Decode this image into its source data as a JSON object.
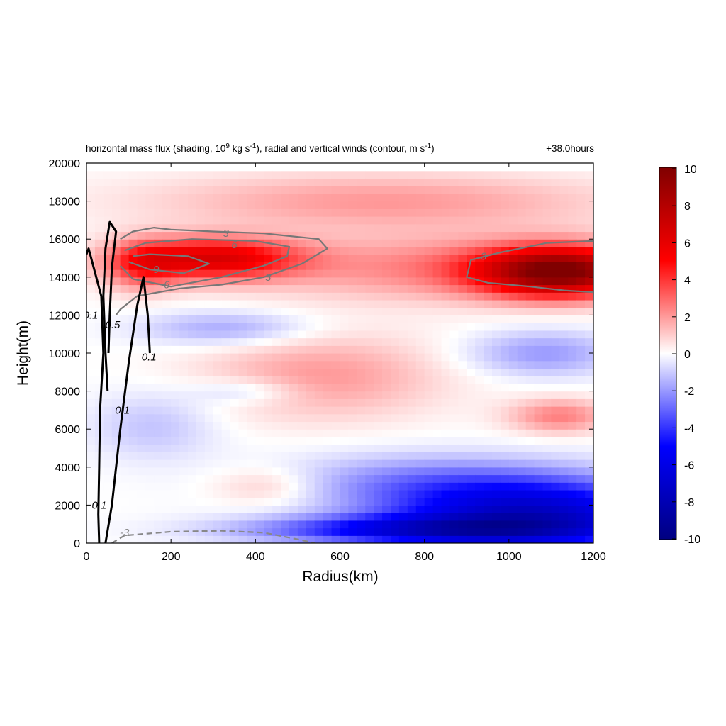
{
  "chart_data": {
    "type": "heatmap",
    "title_parts": {
      "a": "horizontal mass flux (shading, 10",
      "a_sup": "9",
      "b": " kg s",
      "b_sup": "-1",
      "c": "), radial and vertical winds (contour, m s",
      "c_sup": "-1",
      "d": ")"
    },
    "time_label": "+38.0hours",
    "xlabel": "Radius(km)",
    "ylabel": "Height(m)",
    "xlim": [
      0,
      1200
    ],
    "ylim": [
      0,
      20000
    ],
    "xticks": [
      "0",
      "200",
      "400",
      "600",
      "800",
      "1000",
      "1200"
    ],
    "yticks": [
      "0",
      "2000",
      "4000",
      "6000",
      "8000",
      "10000",
      "12000",
      "14000",
      "16000",
      "18000",
      "20000"
    ],
    "colorbar": {
      "range": [
        -10,
        10
      ],
      "ticks": [
        "10",
        "8",
        "6",
        "4",
        "2",
        "0",
        "-2",
        "-4",
        "-6",
        "-8",
        "-10"
      ],
      "colors": [
        "#000080",
        "#0000ff",
        "#ffffff",
        "#ff0000",
        "#800000"
      ]
    },
    "shading_blobs": [
      {
        "r": 300,
        "z": 15000,
        "rr": 200,
        "rz": 1100,
        "v": 6
      },
      {
        "r": 130,
        "z": 14600,
        "rr": 90,
        "rz": 1300,
        "v": 3
      },
      {
        "r": 1120,
        "z": 14300,
        "rr": 190,
        "rz": 1300,
        "v": 9
      },
      {
        "r": 860,
        "z": 14500,
        "rr": 450,
        "rz": 1700,
        "v": 2.5
      },
      {
        "r": 700,
        "z": 18000,
        "rr": 550,
        "rz": 1500,
        "v": 2
      },
      {
        "r": 560,
        "z": 8800,
        "rr": 280,
        "rz": 2200,
        "v": 2
      },
      {
        "r": 430,
        "z": 3000,
        "rr": 130,
        "rz": 1000,
        "v": 1.3
      },
      {
        "r": 1120,
        "z": 6700,
        "rr": 120,
        "rz": 900,
        "v": 2.5
      },
      {
        "r": 1060,
        "z": 1500,
        "rr": 330,
        "rz": 1900,
        "v": -7
      },
      {
        "r": 780,
        "z": 700,
        "rr": 380,
        "rz": 750,
        "v": -5
      },
      {
        "r": 780,
        "z": 3200,
        "rr": 330,
        "rz": 1500,
        "v": -2
      },
      {
        "r": 1080,
        "z": 10000,
        "rr": 180,
        "rz": 1200,
        "v": -2
      },
      {
        "r": 330,
        "z": 11300,
        "rr": 200,
        "rz": 900,
        "v": -1.8
      },
      {
        "r": 380,
        "z": 8000,
        "rr": 130,
        "rz": 700,
        "v": -1.3
      },
      {
        "r": 160,
        "z": 6200,
        "rr": 150,
        "rz": 1800,
        "v": -1.2
      }
    ],
    "contours": [
      {
        "value": 3,
        "label": "3",
        "color": "#777777",
        "dash": false,
        "points": [
          [
            70,
            12000
          ],
          [
            80,
            12300
          ],
          [
            120,
            13000
          ],
          [
            220,
            13400
          ],
          [
            320,
            13600
          ],
          [
            420,
            14000
          ],
          [
            510,
            14700
          ],
          [
            570,
            15500
          ],
          [
            550,
            16000
          ],
          [
            420,
            16300
          ],
          [
            300,
            16400
          ],
          [
            200,
            16500
          ],
          [
            160,
            16600
          ],
          [
            110,
            16400
          ],
          [
            80,
            16000
          ]
        ],
        "labels": [
          {
            "x": 330,
            "y": 16300,
            "t": "3"
          },
          {
            "x": 430,
            "y": 14000,
            "t": "3"
          }
        ]
      },
      {
        "value": 6,
        "label": "6",
        "color": "#777777",
        "dash": false,
        "points": [
          [
            80,
            14600
          ],
          [
            110,
            13900
          ],
          [
            200,
            13500
          ],
          [
            320,
            14000
          ],
          [
            420,
            14600
          ],
          [
            475,
            15100
          ],
          [
            480,
            15600
          ],
          [
            400,
            15900
          ],
          [
            250,
            16000
          ],
          [
            140,
            15800
          ],
          [
            90,
            15400
          ]
        ],
        "labels": [
          {
            "x": 350,
            "y": 15700,
            "t": "6"
          },
          {
            "x": 190,
            "y": 13600,
            "t": "6"
          }
        ]
      },
      {
        "value": 9,
        "label": "9",
        "color": "#777777",
        "dash": false,
        "points": [
          [
            100,
            14800
          ],
          [
            150,
            14400
          ],
          [
            230,
            14200
          ],
          [
            290,
            14700
          ],
          [
            240,
            15100
          ],
          [
            150,
            15200
          ],
          [
            110,
            15100
          ]
        ],
        "labels": [
          {
            "x": 165,
            "y": 14400,
            "t": "9"
          }
        ]
      },
      {
        "value": 3,
        "label": "3",
        "color": "#777777",
        "dash": false,
        "points": [
          [
            1200,
            15900
          ],
          [
            1090,
            15800
          ],
          [
            980,
            15300
          ],
          [
            910,
            14900
          ],
          [
            900,
            14000
          ],
          [
            950,
            13700
          ],
          [
            1050,
            13500
          ],
          [
            1130,
            13300
          ],
          [
            1200,
            13200
          ]
        ],
        "labels": [
          {
            "x": 940,
            "y": 15100,
            "t": "3"
          }
        ]
      },
      {
        "value": -3,
        "label": "-3",
        "color": "#888888",
        "dash": true,
        "points": [
          [
            60,
            0
          ],
          [
            90,
            400
          ],
          [
            200,
            600
          ],
          [
            320,
            650
          ],
          [
            420,
            550
          ],
          [
            500,
            200
          ],
          [
            540,
            0
          ]
        ],
        "labels": [
          {
            "x": 90,
            "y": 560,
            "t": "-3"
          }
        ]
      },
      {
        "value": 0.1,
        "label": "0.1",
        "color": "#000000",
        "dash": false,
        "points": [
          [
            30,
            0
          ],
          [
            28,
            1500
          ],
          [
            30,
            4000
          ],
          [
            32,
            7000
          ],
          [
            40,
            10000
          ],
          [
            35,
            13000
          ],
          [
            5,
            15500
          ],
          [
            0,
            15200
          ]
        ],
        "labels": [
          {
            "x": 30,
            "y": 2000,
            "t": "0.1"
          },
          {
            "x": 10,
            "y": 12000,
            "t": "0.1"
          }
        ]
      },
      {
        "value": 0.1,
        "label": "0.1",
        "color": "#000000",
        "dash": false,
        "points": [
          [
            45,
            0
          ],
          [
            60,
            2000
          ],
          [
            80,
            6000
          ],
          [
            100,
            9500
          ],
          [
            120,
            12500
          ],
          [
            135,
            14000
          ],
          [
            145,
            12000
          ],
          [
            150,
            10000
          ]
        ],
        "labels": [
          {
            "x": 85,
            "y": 7000,
            "t": "0.1"
          },
          {
            "x": 148,
            "y": 9800,
            "t": "0.1"
          }
        ]
      },
      {
        "value": 0.5,
        "label": "0.5",
        "color": "#000000",
        "dash": false,
        "points": [
          [
            50,
            8000
          ],
          [
            45,
            10000
          ],
          [
            40,
            13000
          ],
          [
            45,
            15500
          ],
          [
            55,
            16900
          ],
          [
            70,
            16400
          ],
          [
            60,
            14500
          ],
          [
            55,
            12000
          ],
          [
            52,
            10000
          ]
        ],
        "labels": [
          {
            "x": 62,
            "y": 11500,
            "t": "0.5"
          }
        ]
      }
    ]
  }
}
